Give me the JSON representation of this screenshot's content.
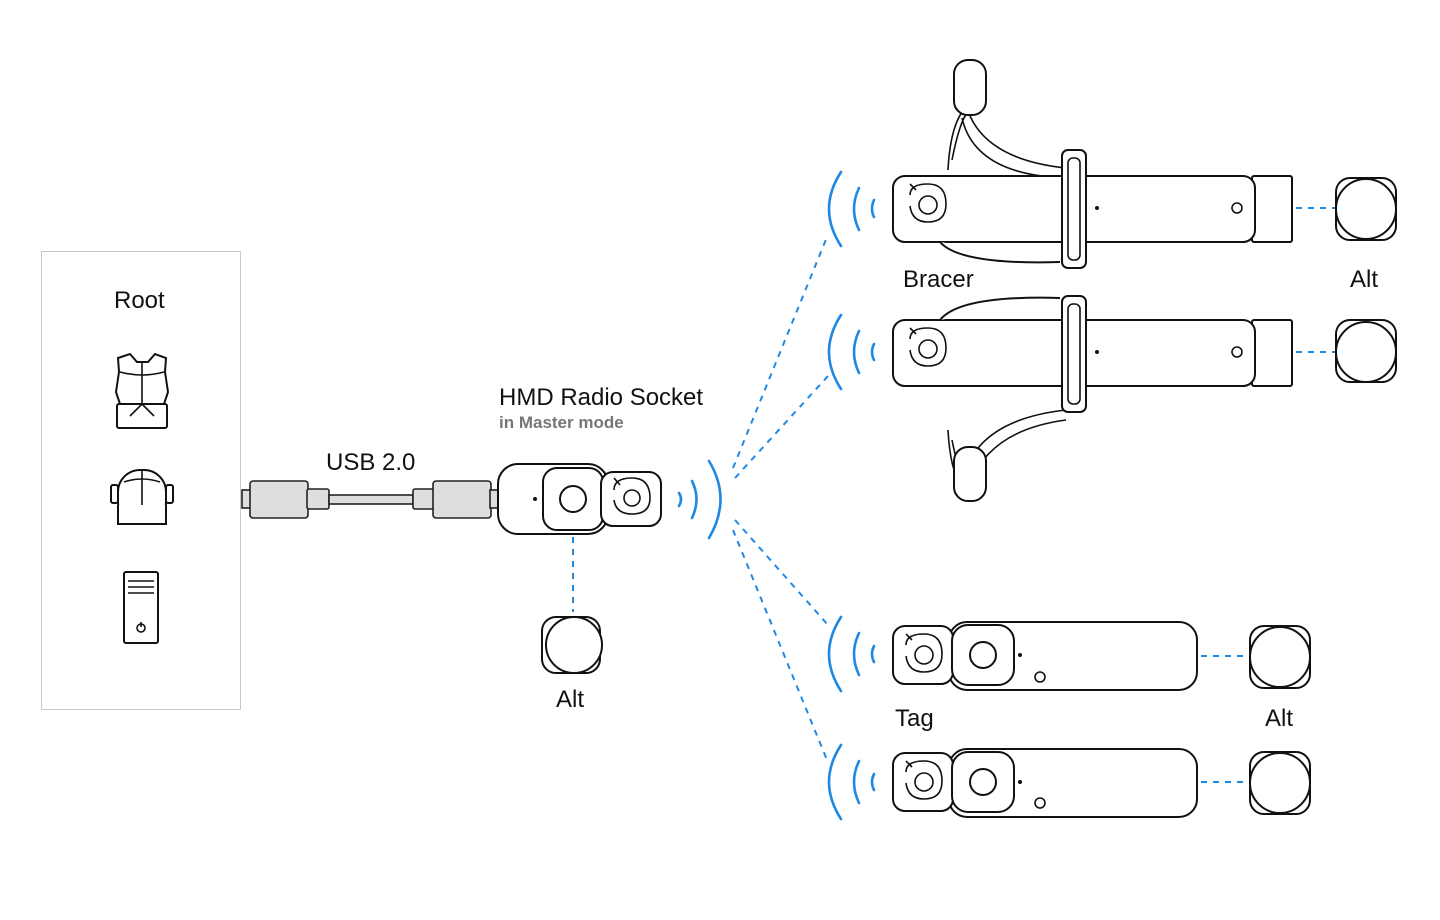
{
  "root": {
    "title": "Root"
  },
  "cable": {
    "label": "USB 2.0"
  },
  "socket": {
    "title": "HMD Radio Socket",
    "subtitle": "in Master mode",
    "alt_label": "Alt"
  },
  "bracers": {
    "label": "Bracer",
    "alt_label": "Alt"
  },
  "tags": {
    "label": "Tag",
    "alt_label": "Alt"
  },
  "colors": {
    "signal": "#1e88e5",
    "outline": "#111111",
    "panel_border": "#c8c8c8",
    "subtitle": "#777777"
  },
  "icons": [
    "backpack-pc-icon",
    "vr-headset-icon",
    "pc-tower-icon",
    "usb-connector-icon",
    "radio-socket-icon",
    "bracer-device-icon",
    "tag-device-icon",
    "alt-puck-icon",
    "signal-waves-icon"
  ]
}
